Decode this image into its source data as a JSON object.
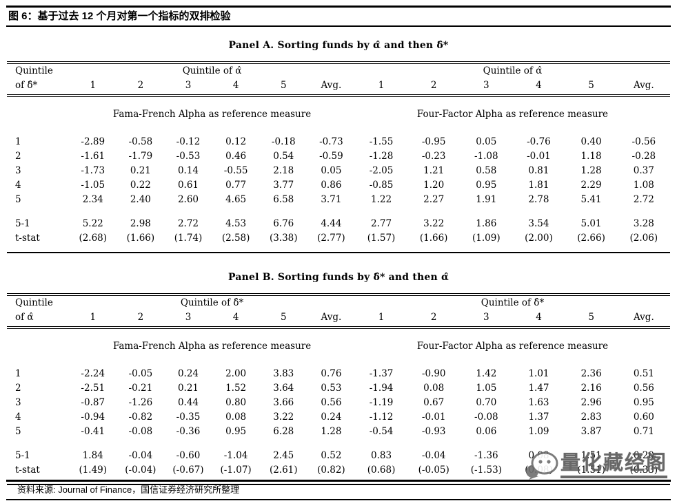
{
  "header": {
    "title": "图 6：基于过去 12 个月对第一个指标的双排检验"
  },
  "panels": [
    {
      "title": "Panel A. Sorting funds by α̂ and then δ̂*",
      "row_header_line1": "Quintile",
      "row_header_line2": "of δ̂*",
      "col_group_left": "Quintile of α̂",
      "col_group_right": "Quintile of α̂",
      "col_labels": [
        "1",
        "2",
        "3",
        "4",
        "5",
        "Avg."
      ],
      "left_section": "Fama-French Alpha as reference measure",
      "right_section": "Four-Factor Alpha as reference measure",
      "rows": [
        {
          "label": "1",
          "left": [
            "-2.89",
            "-0.58",
            "-0.12",
            "0.12",
            "-0.18",
            "-0.73"
          ],
          "right": [
            "-1.55",
            "-0.95",
            "0.05",
            "-0.76",
            "0.40",
            "-0.56"
          ]
        },
        {
          "label": "2",
          "left": [
            "-1.61",
            "-1.79",
            "-0.53",
            "0.46",
            "0.54",
            "-0.59"
          ],
          "right": [
            "-1.28",
            "-0.23",
            "-1.08",
            "-0.01",
            "1.18",
            "-0.28"
          ]
        },
        {
          "label": "3",
          "left": [
            "-1.73",
            "0.21",
            "0.14",
            "-0.55",
            "2.18",
            "0.05"
          ],
          "right": [
            "-2.05",
            "1.21",
            "0.58",
            "0.81",
            "1.28",
            "0.37"
          ]
        },
        {
          "label": "4",
          "left": [
            "-1.05",
            "0.22",
            "0.61",
            "0.77",
            "3.77",
            "0.86"
          ],
          "right": [
            "-0.85",
            "1.20",
            "0.95",
            "1.81",
            "2.29",
            "1.08"
          ]
        },
        {
          "label": "5",
          "left": [
            "2.34",
            "2.40",
            "2.60",
            "4.65",
            "6.58",
            "3.71"
          ],
          "right": [
            "1.22",
            "2.27",
            "1.91",
            "2.78",
            "5.41",
            "2.72"
          ]
        },
        {
          "label": "5-1",
          "left": [
            "5.22",
            "2.98",
            "2.72",
            "4.53",
            "6.76",
            "4.44"
          ],
          "right": [
            "2.77",
            "3.22",
            "1.86",
            "3.54",
            "5.01",
            "3.28"
          ]
        },
        {
          "label": "t-stat",
          "left": [
            "(2.68)",
            "(1.66)",
            "(1.74)",
            "(2.58)",
            "(3.38)",
            "(2.77)"
          ],
          "right": [
            "(1.57)",
            "(1.66)",
            "(1.09)",
            "(2.00)",
            "(2.66)",
            "(2.06)"
          ]
        }
      ]
    },
    {
      "title": "Panel B. Sorting funds by δ̂* and then α̂",
      "row_header_line1": "Quintile",
      "row_header_line2": "of α̂",
      "col_group_left": "Quintile of δ̂*",
      "col_group_right": "Quintile of δ̂*",
      "col_labels": [
        "1",
        "2",
        "3",
        "4",
        "5",
        "Avg."
      ],
      "left_section": "Fama-French Alpha as reference measure",
      "right_section": "Four-Factor Alpha as reference measure",
      "rows": [
        {
          "label": "1",
          "left": [
            "-2.24",
            "-0.05",
            "0.24",
            "2.00",
            "3.83",
            "0.76"
          ],
          "right": [
            "-1.37",
            "-0.90",
            "1.42",
            "1.01",
            "2.36",
            "0.51"
          ]
        },
        {
          "label": "2",
          "left": [
            "-2.51",
            "-0.21",
            "0.21",
            "1.52",
            "3.64",
            "0.53"
          ],
          "right": [
            "-1.94",
            "0.08",
            "1.05",
            "1.47",
            "2.16",
            "0.56"
          ]
        },
        {
          "label": "3",
          "left": [
            "-0.87",
            "-1.26",
            "0.44",
            "0.80",
            "3.66",
            "0.56"
          ],
          "right": [
            "-1.19",
            "0.67",
            "0.70",
            "1.63",
            "2.96",
            "0.95"
          ]
        },
        {
          "label": "4",
          "left": [
            "-0.94",
            "-0.82",
            "-0.35",
            "0.08",
            "3.22",
            "0.24"
          ],
          "right": [
            "-1.12",
            "-0.01",
            "-0.08",
            "1.37",
            "2.83",
            "0.60"
          ]
        },
        {
          "label": "5",
          "left": [
            "-0.41",
            "-0.08",
            "-0.36",
            "0.95",
            "6.28",
            "1.28"
          ],
          "right": [
            "-0.54",
            "-0.93",
            "0.06",
            "1.09",
            "3.87",
            "0.71"
          ]
        },
        {
          "label": "5-1",
          "left": [
            "1.84",
            "-0.04",
            "-0.60",
            "-1.04",
            "2.45",
            "0.52"
          ],
          "right": [
            "0.83",
            "-0.04",
            "-1.36",
            "0.08",
            "1.51",
            "0.20"
          ]
        },
        {
          "label": "t-stat",
          "left": [
            "(1.49)",
            "(-0.04)",
            "(-0.67)",
            "(-1.07)",
            "(2.61)",
            "(0.82)"
          ],
          "right": [
            "(0.68)",
            "(-0.05)",
            "(-1.53)",
            "(0.08)",
            "(1.51)",
            "(0.33)"
          ]
        }
      ]
    }
  ],
  "footer": {
    "source": "资料来源: Journal of Finance，国信证券经济研究所整理"
  },
  "watermark": {
    "text": "量化藏经阁"
  }
}
